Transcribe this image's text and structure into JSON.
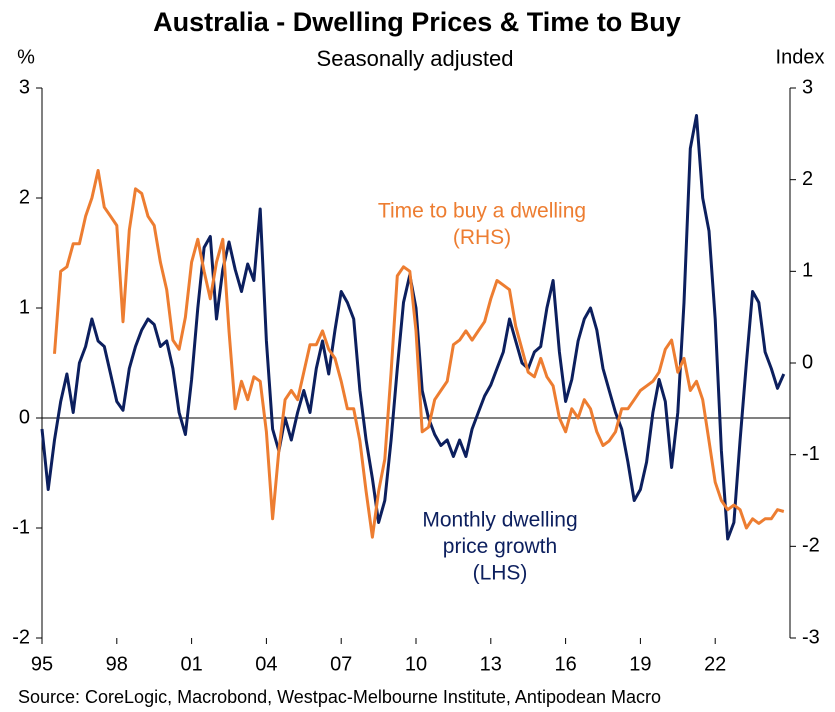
{
  "chart_data": {
    "type": "line",
    "title": "Australia - Dwelling Prices & Time to Buy",
    "subtitle": "Seasonally adjusted",
    "y_label": "%",
    "y2_label": "Index",
    "source": "Source: CoreLogic, Macrobond, Westpac-Melbourne Institute, Antipodean Macro",
    "xlim": [
      1995,
      2025
    ],
    "xticks": [
      {
        "value": 1995,
        "label": "95"
      },
      {
        "value": 1998,
        "label": "98"
      },
      {
        "value": 2001,
        "label": "01"
      },
      {
        "value": 2004,
        "label": "04"
      },
      {
        "value": 2007,
        "label": "07"
      },
      {
        "value": 2010,
        "label": "10"
      },
      {
        "value": 2013,
        "label": "13"
      },
      {
        "value": 2016,
        "label": "16"
      },
      {
        "value": 2019,
        "label": "19"
      },
      {
        "value": 2022,
        "label": "22"
      }
    ],
    "ylim": [
      -2,
      3
    ],
    "yticks": [
      -2,
      -1,
      0,
      1,
      2,
      3
    ],
    "y2lim": [
      -3,
      3
    ],
    "y2ticks": [
      -3,
      -2,
      -1,
      0,
      1,
      2,
      3
    ],
    "x": [
      1995,
      1995.25,
      1995.5,
      1995.75,
      1996,
      1996.25,
      1996.5,
      1996.75,
      1997,
      1997.25,
      1997.5,
      1997.75,
      1998,
      1998.25,
      1998.5,
      1998.75,
      1999,
      1999.25,
      1999.5,
      1999.75,
      2000,
      2000.25,
      2000.5,
      2000.75,
      2001,
      2001.25,
      2001.5,
      2001.75,
      2002,
      2002.25,
      2002.5,
      2002.75,
      2003,
      2003.25,
      2003.5,
      2003.75,
      2004,
      2004.25,
      2004.5,
      2004.75,
      2005,
      2005.25,
      2005.5,
      2005.75,
      2006,
      2006.25,
      2006.5,
      2006.75,
      2007,
      2007.25,
      2007.5,
      2007.75,
      2008,
      2008.25,
      2008.5,
      2008.75,
      2009,
      2009.25,
      2009.5,
      2009.75,
      2010,
      2010.25,
      2010.5,
      2010.75,
      2011,
      2011.25,
      2011.5,
      2011.75,
      2012,
      2012.25,
      2012.5,
      2012.75,
      2013,
      2013.25,
      2013.5,
      2013.75,
      2014,
      2014.25,
      2014.5,
      2014.75,
      2015,
      2015.25,
      2015.5,
      2015.75,
      2016,
      2016.25,
      2016.5,
      2016.75,
      2017,
      2017.25,
      2017.5,
      2017.75,
      2018,
      2018.25,
      2018.5,
      2018.75,
      2019,
      2019.25,
      2019.5,
      2019.75,
      2020,
      2020.25,
      2020.5,
      2020.75,
      2021,
      2021.25,
      2021.5,
      2021.75,
      2022,
      2022.25,
      2022.5,
      2022.75,
      2023,
      2023.25,
      2023.5,
      2023.75,
      2024,
      2024.25,
      2024.5,
      2024.75
    ],
    "series": [
      {
        "name": [
          "Monthly dwelling",
          "price growth",
          "(LHS)"
        ],
        "color": "#0c1f5e",
        "axis": "y",
        "values": [
          -0.1,
          -0.65,
          -0.2,
          0.15,
          0.4,
          0.05,
          0.5,
          0.65,
          0.9,
          0.7,
          0.65,
          0.4,
          0.15,
          0.07,
          0.45,
          0.65,
          0.8,
          0.9,
          0.85,
          0.65,
          0.7,
          0.45,
          0.05,
          -0.15,
          0.35,
          1.0,
          1.55,
          1.65,
          0.9,
          1.35,
          1.6,
          1.35,
          1.15,
          1.4,
          1.25,
          1.9,
          0.7,
          -0.1,
          -0.3,
          0.0,
          -0.2,
          0.05,
          0.25,
          0.05,
          0.45,
          0.7,
          0.4,
          0.8,
          1.15,
          1.05,
          0.9,
          0.25,
          -0.2,
          -0.55,
          -0.95,
          -0.75,
          -0.2,
          0.45,
          1.05,
          1.3,
          1.0,
          0.25,
          0.0,
          -0.15,
          -0.25,
          -0.2,
          -0.35,
          -0.2,
          -0.35,
          -0.1,
          0.05,
          0.2,
          0.3,
          0.45,
          0.6,
          0.9,
          0.7,
          0.5,
          0.45,
          0.6,
          0.65,
          1.0,
          1.25,
          0.6,
          0.15,
          0.35,
          0.7,
          0.9,
          1.0,
          0.8,
          0.45,
          0.25,
          0.05,
          -0.1,
          -0.4,
          -0.75,
          -0.65,
          -0.4,
          0.05,
          0.35,
          0.15,
          -0.45,
          0.05,
          1.05,
          2.45,
          2.75,
          2.0,
          1.7,
          0.9,
          -0.3,
          -1.1,
          -0.95,
          -0.2,
          0.5,
          1.15,
          1.05,
          0.6,
          0.45,
          0.27,
          0.4
        ]
      },
      {
        "name": [
          "Time to buy a dwelling",
          "(RHS)"
        ],
        "color": "#ed7d31",
        "axis": "y2",
        "values": [
          null,
          null,
          0.1,
          1.0,
          1.05,
          1.3,
          1.3,
          1.6,
          1.8,
          2.1,
          1.7,
          1.6,
          1.5,
          0.45,
          1.45,
          1.9,
          1.85,
          1.6,
          1.5,
          1.1,
          0.8,
          0.25,
          0.15,
          0.5,
          1.1,
          1.35,
          1.0,
          0.7,
          1.1,
          1.35,
          0.35,
          -0.5,
          -0.2,
          -0.4,
          -0.15,
          -0.2,
          -0.75,
          -1.7,
          -0.95,
          -0.4,
          -0.3,
          -0.4,
          -0.1,
          0.2,
          0.2,
          0.35,
          0.15,
          0.05,
          -0.2,
          -0.5,
          -0.5,
          -0.85,
          -1.4,
          -1.9,
          -1.4,
          -1.05,
          -0.1,
          0.95,
          1.05,
          1.0,
          0.35,
          -0.75,
          -0.7,
          -0.4,
          -0.3,
          -0.2,
          0.2,
          0.25,
          0.35,
          0.25,
          0.35,
          0.45,
          0.7,
          0.9,
          0.85,
          0.8,
          0.4,
          0.15,
          -0.1,
          -0.15,
          0.05,
          -0.15,
          -0.25,
          -0.6,
          -0.75,
          -0.5,
          -0.6,
          -0.4,
          -0.5,
          -0.75,
          -0.9,
          -0.85,
          -0.75,
          -0.5,
          -0.5,
          -0.4,
          -0.3,
          -0.25,
          -0.2,
          -0.1,
          0.15,
          0.25,
          -0.1,
          0.05,
          -0.3,
          -0.2,
          -0.4,
          -0.85,
          -1.3,
          -1.5,
          -1.6,
          -1.55,
          -1.6,
          -1.8,
          -1.7,
          -1.75,
          -1.7,
          -1.7,
          -1.6,
          -1.62
        ]
      }
    ]
  }
}
